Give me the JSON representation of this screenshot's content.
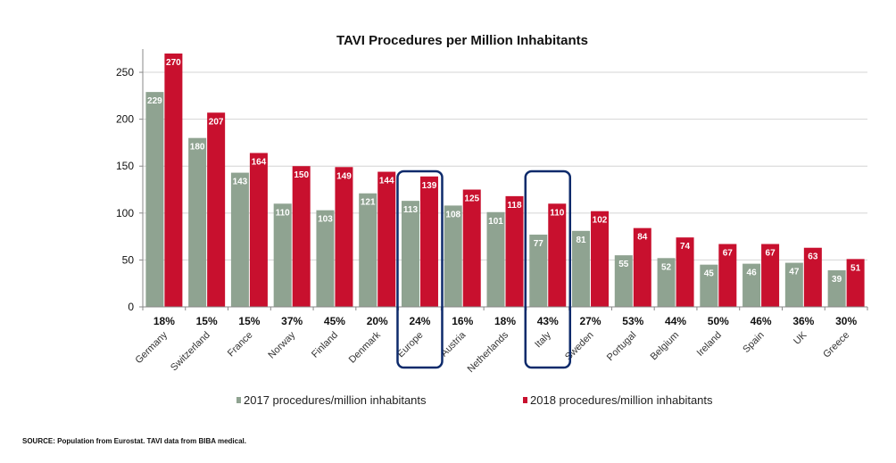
{
  "chart_data": {
    "type": "bar",
    "title": "TAVI Procedures per Million Inhabitants",
    "xlabel": "",
    "ylabel": "",
    "ylim": [
      0,
      270
    ],
    "yticks": [
      0,
      50,
      100,
      150,
      200,
      250
    ],
    "grid": true,
    "legend_position": "bottom",
    "categories": [
      "Germany",
      "Switzerland",
      "France",
      "Norway",
      "Finland",
      "Denmark",
      "Europe",
      "Austria",
      "Netherlands",
      "Italy",
      "Sweden",
      "Portugal",
      "Belgium",
      "Ireland",
      "Spain",
      "UK",
      "Greece"
    ],
    "growth_labels": [
      "18%",
      "15%",
      "15%",
      "37%",
      "45%",
      "20%",
      "24%",
      "16%",
      "18%",
      "43%",
      "27%",
      "53%",
      "44%",
      "50%",
      "46%",
      "36%",
      "30%"
    ],
    "highlighted_categories": [
      "Europe",
      "Italy"
    ],
    "series": [
      {
        "name": "2017 procedures/million inhabitants",
        "color": "#8fa391",
        "values": [
          229,
          180,
          143,
          110,
          103,
          121,
          113,
          108,
          101,
          77,
          81,
          55,
          52,
          45,
          46,
          47,
          39
        ]
      },
      {
        "name": "2018 procedures/million inhabitants",
        "color": "#c8102e",
        "values": [
          270,
          207,
          164,
          150,
          149,
          144,
          139,
          125,
          118,
          110,
          102,
          84,
          74,
          67,
          67,
          63,
          51
        ]
      }
    ],
    "highlight_color": "#0d2a6b",
    "source_note": "SOURCE: Population from Eurostat. TAVI data from BIBA medical."
  }
}
